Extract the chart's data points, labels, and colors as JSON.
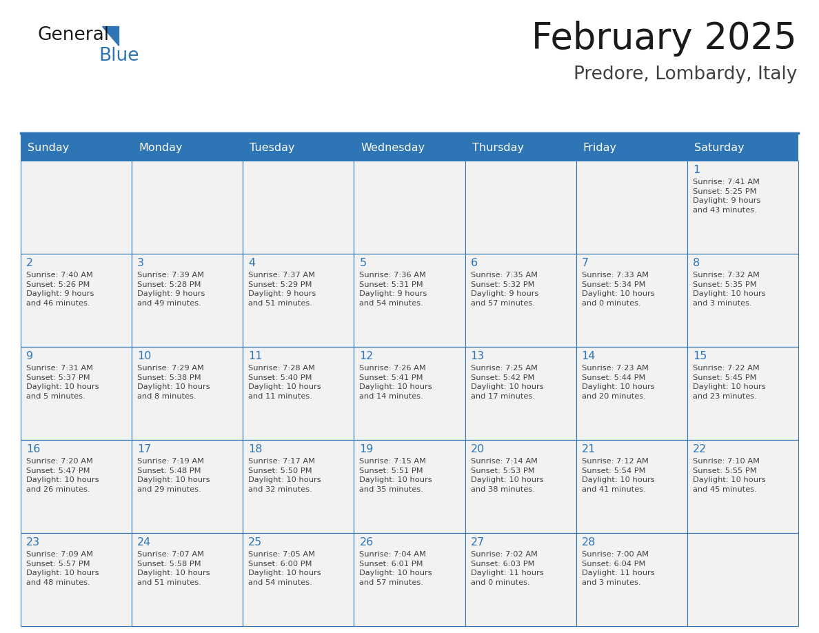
{
  "title": "February 2025",
  "subtitle": "Predore, Lombardy, Italy",
  "header_bg_color": "#2e75b6",
  "header_text_color": "#ffffff",
  "cell_bg_color": "#f2f2f2",
  "cell_border_color": "#2e75b6",
  "day_number_color": "#2e75b6",
  "cell_text_color": "#404040",
  "days_of_week": [
    "Sunday",
    "Monday",
    "Tuesday",
    "Wednesday",
    "Thursday",
    "Friday",
    "Saturday"
  ],
  "logo_general_color": "#1a1a1a",
  "logo_blue_color": "#2e75b6",
  "logo_triangle_color": "#2e75b6",
  "weeks": [
    [
      {
        "day": null,
        "info": null
      },
      {
        "day": null,
        "info": null
      },
      {
        "day": null,
        "info": null
      },
      {
        "day": null,
        "info": null
      },
      {
        "day": null,
        "info": null
      },
      {
        "day": null,
        "info": null
      },
      {
        "day": 1,
        "info": "Sunrise: 7:41 AM\nSunset: 5:25 PM\nDaylight: 9 hours\nand 43 minutes."
      }
    ],
    [
      {
        "day": 2,
        "info": "Sunrise: 7:40 AM\nSunset: 5:26 PM\nDaylight: 9 hours\nand 46 minutes."
      },
      {
        "day": 3,
        "info": "Sunrise: 7:39 AM\nSunset: 5:28 PM\nDaylight: 9 hours\nand 49 minutes."
      },
      {
        "day": 4,
        "info": "Sunrise: 7:37 AM\nSunset: 5:29 PM\nDaylight: 9 hours\nand 51 minutes."
      },
      {
        "day": 5,
        "info": "Sunrise: 7:36 AM\nSunset: 5:31 PM\nDaylight: 9 hours\nand 54 minutes."
      },
      {
        "day": 6,
        "info": "Sunrise: 7:35 AM\nSunset: 5:32 PM\nDaylight: 9 hours\nand 57 minutes."
      },
      {
        "day": 7,
        "info": "Sunrise: 7:33 AM\nSunset: 5:34 PM\nDaylight: 10 hours\nand 0 minutes."
      },
      {
        "day": 8,
        "info": "Sunrise: 7:32 AM\nSunset: 5:35 PM\nDaylight: 10 hours\nand 3 minutes."
      }
    ],
    [
      {
        "day": 9,
        "info": "Sunrise: 7:31 AM\nSunset: 5:37 PM\nDaylight: 10 hours\nand 5 minutes."
      },
      {
        "day": 10,
        "info": "Sunrise: 7:29 AM\nSunset: 5:38 PM\nDaylight: 10 hours\nand 8 minutes."
      },
      {
        "day": 11,
        "info": "Sunrise: 7:28 AM\nSunset: 5:40 PM\nDaylight: 10 hours\nand 11 minutes."
      },
      {
        "day": 12,
        "info": "Sunrise: 7:26 AM\nSunset: 5:41 PM\nDaylight: 10 hours\nand 14 minutes."
      },
      {
        "day": 13,
        "info": "Sunrise: 7:25 AM\nSunset: 5:42 PM\nDaylight: 10 hours\nand 17 minutes."
      },
      {
        "day": 14,
        "info": "Sunrise: 7:23 AM\nSunset: 5:44 PM\nDaylight: 10 hours\nand 20 minutes."
      },
      {
        "day": 15,
        "info": "Sunrise: 7:22 AM\nSunset: 5:45 PM\nDaylight: 10 hours\nand 23 minutes."
      }
    ],
    [
      {
        "day": 16,
        "info": "Sunrise: 7:20 AM\nSunset: 5:47 PM\nDaylight: 10 hours\nand 26 minutes."
      },
      {
        "day": 17,
        "info": "Sunrise: 7:19 AM\nSunset: 5:48 PM\nDaylight: 10 hours\nand 29 minutes."
      },
      {
        "day": 18,
        "info": "Sunrise: 7:17 AM\nSunset: 5:50 PM\nDaylight: 10 hours\nand 32 minutes."
      },
      {
        "day": 19,
        "info": "Sunrise: 7:15 AM\nSunset: 5:51 PM\nDaylight: 10 hours\nand 35 minutes."
      },
      {
        "day": 20,
        "info": "Sunrise: 7:14 AM\nSunset: 5:53 PM\nDaylight: 10 hours\nand 38 minutes."
      },
      {
        "day": 21,
        "info": "Sunrise: 7:12 AM\nSunset: 5:54 PM\nDaylight: 10 hours\nand 41 minutes."
      },
      {
        "day": 22,
        "info": "Sunrise: 7:10 AM\nSunset: 5:55 PM\nDaylight: 10 hours\nand 45 minutes."
      }
    ],
    [
      {
        "day": 23,
        "info": "Sunrise: 7:09 AM\nSunset: 5:57 PM\nDaylight: 10 hours\nand 48 minutes."
      },
      {
        "day": 24,
        "info": "Sunrise: 7:07 AM\nSunset: 5:58 PM\nDaylight: 10 hours\nand 51 minutes."
      },
      {
        "day": 25,
        "info": "Sunrise: 7:05 AM\nSunset: 6:00 PM\nDaylight: 10 hours\nand 54 minutes."
      },
      {
        "day": 26,
        "info": "Sunrise: 7:04 AM\nSunset: 6:01 PM\nDaylight: 10 hours\nand 57 minutes."
      },
      {
        "day": 27,
        "info": "Sunrise: 7:02 AM\nSunset: 6:03 PM\nDaylight: 11 hours\nand 0 minutes."
      },
      {
        "day": 28,
        "info": "Sunrise: 7:00 AM\nSunset: 6:04 PM\nDaylight: 11 hours\nand 3 minutes."
      },
      {
        "day": null,
        "info": null
      }
    ]
  ]
}
